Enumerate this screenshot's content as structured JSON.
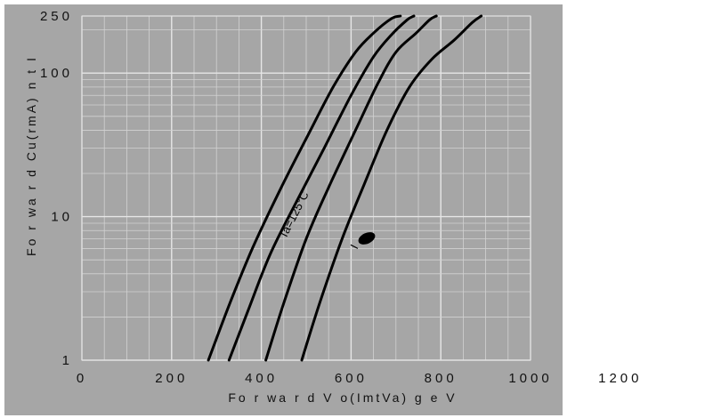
{
  "chart_data": {
    "type": "line",
    "title": "",
    "xlabel": "Fo r wa r d V o(ImtVa) g e V",
    "ylabel": "Fo r wa r d Cu(rmA) n t I",
    "x_scale": "linear",
    "y_scale": "log",
    "xlim": [
      0,
      1000
    ],
    "ylim": [
      1,
      250
    ],
    "x_ticks": [
      0,
      200,
      400,
      600,
      800,
      1000,
      1200
    ],
    "x_tick_labels": [
      "0",
      "200",
      "400",
      "600",
      "800",
      "1000",
      "1200"
    ],
    "y_ticks": [
      1,
      10,
      100,
      250
    ],
    "y_tick_labels": [
      "1",
      "10",
      "100",
      "250"
    ],
    "grid": true,
    "annotations": [
      {
        "text": "Ta=125°C",
        "x": 480,
        "y": 10,
        "rotation": -63
      },
      {
        "text": "I",
        "x": 615,
        "y": 6,
        "rotation": -63
      }
    ],
    "series": [
      {
        "x": [
          282,
          330,
          380,
          440,
          500,
          560,
          610,
          650,
          690,
          710
        ],
        "y": [
          1,
          2.5,
          6,
          15,
          35,
          80,
          140,
          190,
          240,
          250
        ]
      },
      {
        "x": [
          328,
          370,
          420,
          480,
          540,
          600,
          650,
          690,
          725,
          740
        ],
        "y": [
          1,
          2.2,
          5.5,
          13,
          30,
          70,
          130,
          185,
          235,
          250
        ]
      },
      {
        "x": [
          410,
          450,
          500,
          550,
          610,
          660,
          700,
          745,
          775,
          790
        ],
        "y": [
          1,
          2.5,
          7,
          16,
          40,
          85,
          140,
          190,
          235,
          250
        ]
      },
      {
        "x": [
          490,
          530,
          580,
          630,
          680,
          730,
          780,
          830,
          870,
          890
        ],
        "y": [
          1,
          2.5,
          7,
          17,
          40,
          80,
          125,
          170,
          225,
          250
        ]
      }
    ]
  }
}
